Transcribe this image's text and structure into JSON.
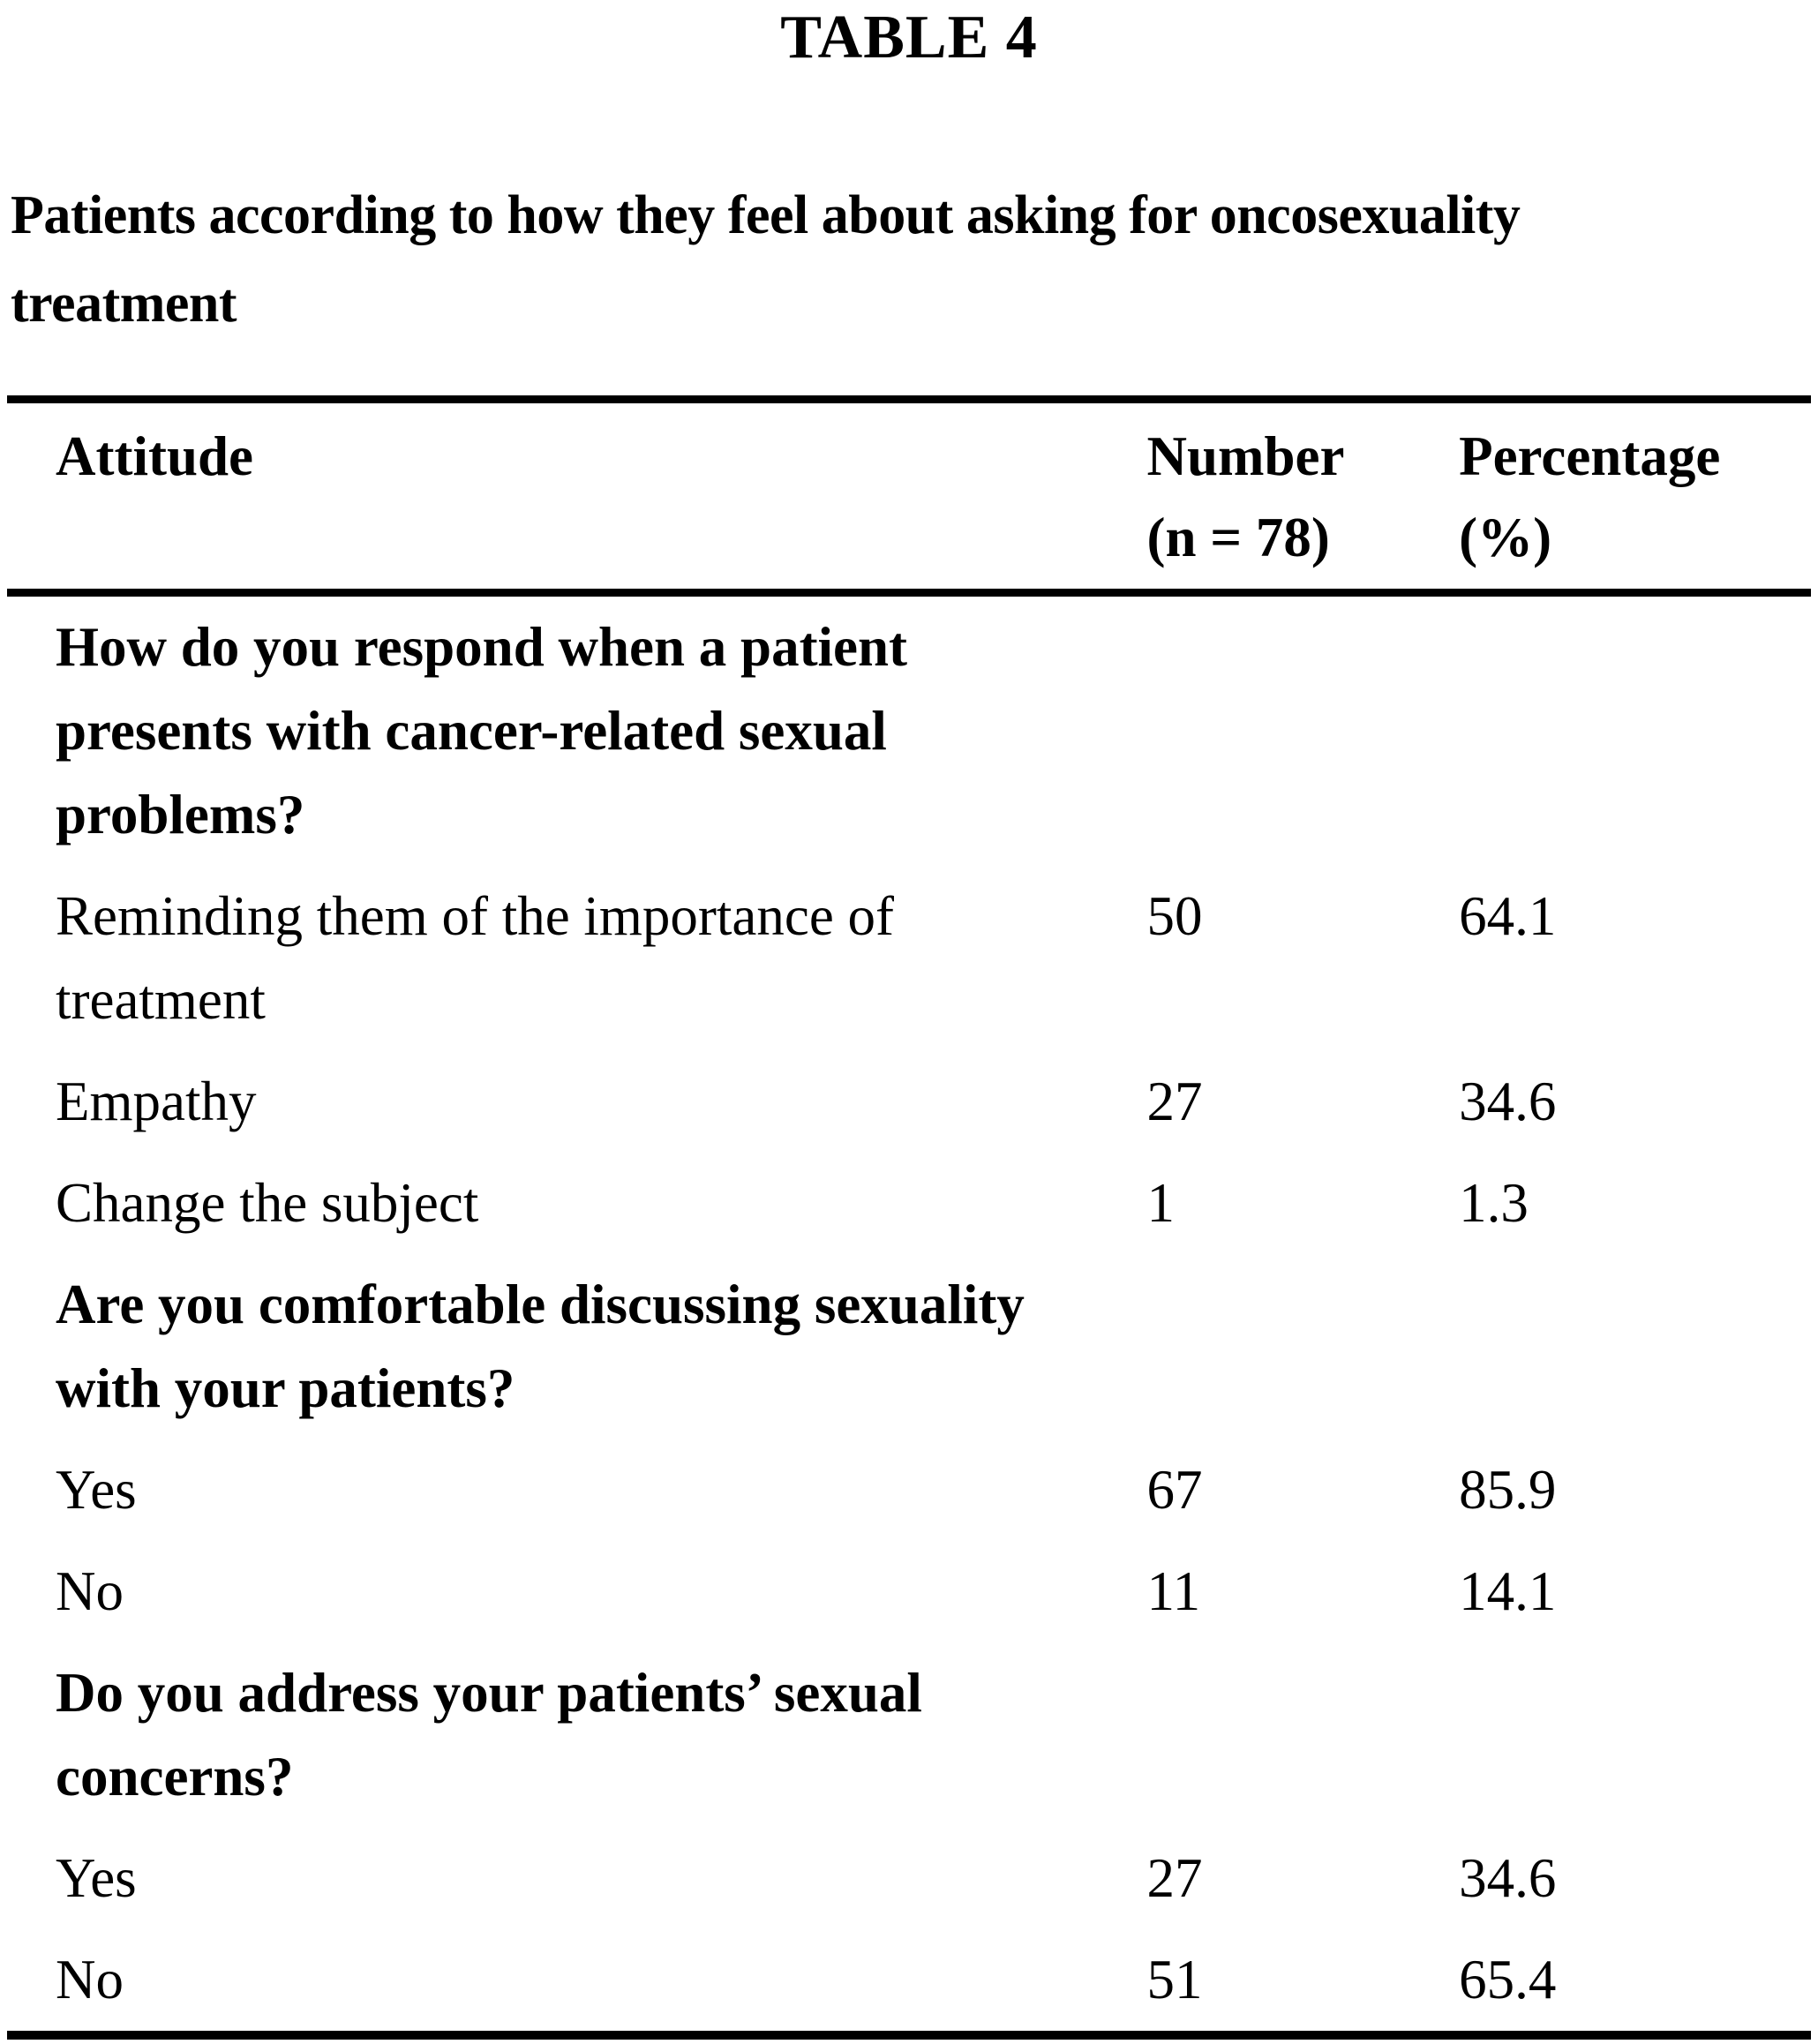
{
  "page": {
    "table_label": "TABLE 4",
    "caption_line1": "Patients according to how they feel about asking for oncosexuality",
    "caption_line2": "treatment"
  },
  "table": {
    "columns": [
      {
        "label": "Attitude",
        "sublabel": ""
      },
      {
        "label": "Number",
        "sublabel": "(n = 78)"
      },
      {
        "label": "Percentage",
        "sublabel": "(%)"
      }
    ],
    "rows": [
      {
        "type": "question",
        "attitude": "How do you respond when a patient presents with cancer-related sexual problems?",
        "number": "",
        "percentage": ""
      },
      {
        "type": "answer",
        "attitude": "Reminding them of the importance of treatment",
        "number": "50",
        "percentage": "64.1"
      },
      {
        "type": "answer",
        "attitude": "Empathy",
        "number": "27",
        "percentage": "34.6"
      },
      {
        "type": "answer",
        "attitude": "Change the subject",
        "number": "1",
        "percentage": "1.3"
      },
      {
        "type": "question",
        "attitude": "Are you comfortable discussing sexuality with your patients?",
        "number": "",
        "percentage": ""
      },
      {
        "type": "answer",
        "attitude": "Yes",
        "number": "67",
        "percentage": "85.9"
      },
      {
        "type": "answer",
        "attitude": "No",
        "number": "11",
        "percentage": "14.1"
      },
      {
        "type": "question",
        "attitude": "Do you address your patients’ sexual concerns?",
        "number": "",
        "percentage": ""
      },
      {
        "type": "answer",
        "attitude": "Yes",
        "number": "27",
        "percentage": "34.6"
      },
      {
        "type": "answer",
        "attitude": "No",
        "number": "51",
        "percentage": "65.4"
      }
    ]
  }
}
